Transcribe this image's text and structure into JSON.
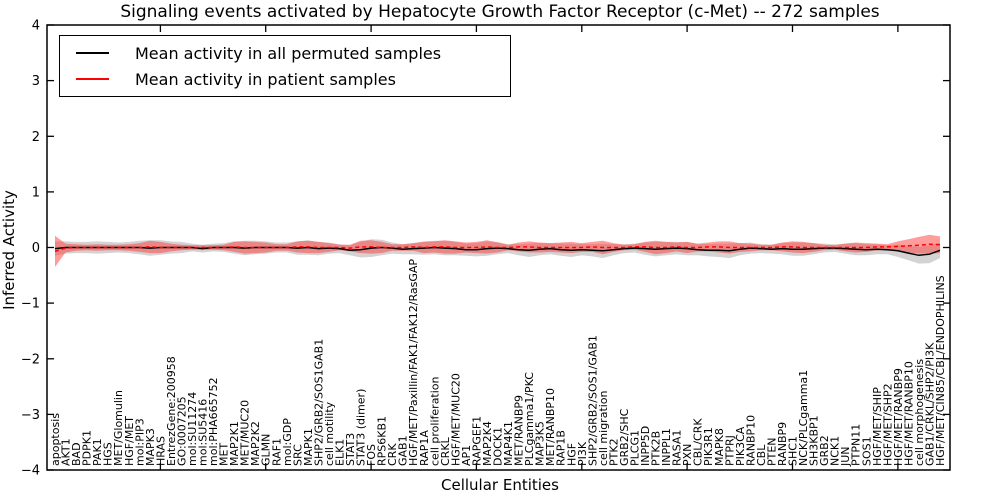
{
  "chart_data": {
    "type": "line",
    "title": "Signaling events activated by Hepatocyte Growth Factor Receptor (c-Met) -- 272 samples",
    "xlabel": "Cellular Entities",
    "ylabel": "Inferred Activity",
    "ylim": [
      -4,
      4
    ],
    "yticks": [
      4,
      3,
      2,
      1,
      0,
      -1,
      -2,
      -3,
      -4
    ],
    "xtick_indices": [
      10,
      20,
      30,
      40,
      50,
      60,
      70,
      80
    ],
    "grid": false,
    "legend_position": "upper left",
    "legend": {
      "entries": [
        {
          "label": "Mean activity in all permuted samples",
          "color": "#000000"
        },
        {
          "label": "Mean activity in patient samples",
          "color": "#ff0000"
        }
      ]
    },
    "categories": [
      "apoptosis",
      "AKT1",
      "BAD",
      "PDPK1",
      "PAK1",
      "HGS",
      "MET/Glomulin",
      "HGF/MET",
      "mol:PIP3",
      "MAPK3",
      "HRAS",
      "EntrezGene:200958",
      "GO:0007205",
      "mol:SU11274",
      "mol:SU5416",
      "mol:PHA665752",
      "MET",
      "MAP2K1",
      "MET/MUC20",
      "MAP2K2",
      "GLMN",
      "RAF1",
      "mol:GDP",
      "SRC",
      "MAPK1",
      "SHP2/GRB2/SOS1GAB1",
      "cell motility",
      "ELK1",
      "STAT3",
      "STAT3 (dimer)",
      "FOS",
      "RPS6KB1",
      "CRK",
      "GAB1",
      "HGF/MET/Paxillin/FAK1/FAK12/RasGAP",
      "RAP1A",
      "cell proliferation",
      "CRKL",
      "HGF/MET/MUC20",
      "AP1",
      "RAPGEF1",
      "MAP2K4",
      "DOCK1",
      "MAP4K1",
      "MET/RANBP9",
      "PLCgamma1/PKC",
      "MAP3K5",
      "MET/RANBP10",
      "RAP1B",
      "HGF",
      "PI3K",
      "SHP2/GRB2/SOS1/GAB1",
      "cell migration",
      "PTK2",
      "GRB2/SHC",
      "PLCG1",
      "INPP5D",
      "PTK2B",
      "INPPL1",
      "RASA1",
      "PXN",
      "CBL/CRK",
      "PIK3R1",
      "MAPK8",
      "PTPRJ",
      "PIK3CA",
      "RANBP10",
      "CBL",
      "PTEN",
      "RANBP9",
      "SHC1",
      "NCK/PLCgamma1",
      "SH3KBP1",
      "GRB2",
      "NCK1",
      "JUN",
      "PTPN11",
      "SOS1",
      "HGF/MET/SHIP",
      "HGF/MET/SHP2",
      "HGF/MET/RANBP9",
      "HGF/MET/RANBP10",
      "cell morphogenesis",
      "GAB1/CRKL/SHP2/PI3K",
      "HGF/MET/CIN85/CBL/ENDOPHILINS"
    ],
    "series": [
      {
        "name": "Mean activity in all permuted samples",
        "color": "#000000",
        "style": "solid",
        "values": [
          -0.02,
          0,
          0,
          0,
          0,
          0,
          0,
          0,
          0,
          -0.01,
          0,
          0,
          0,
          0,
          -0.02,
          0,
          0,
          0,
          -0.01,
          0,
          0,
          0,
          0,
          -0.01,
          0,
          -0.02,
          -0.01,
          -0.02,
          -0.05,
          -0.04,
          -0.01,
          0,
          -0.01,
          -0.03,
          -0.02,
          -0.01,
          0,
          -0.01,
          -0.02,
          -0.04,
          -0.04,
          -0.02,
          -0.01,
          -0.02,
          -0.04,
          -0.05,
          -0.03,
          -0.02,
          -0.04,
          -0.05,
          -0.04,
          -0.05,
          -0.06,
          -0.04,
          -0.02,
          -0.01,
          -0.02,
          -0.03,
          -0.02,
          -0.01,
          -0.02,
          -0.04,
          -0.05,
          -0.05,
          -0.06,
          -0.03,
          -0.01,
          -0.02,
          -0.03,
          -0.02,
          -0.03,
          -0.03,
          -0.02,
          -0.01,
          -0.01,
          -0.02,
          -0.03,
          -0.04,
          -0.03,
          -0.04,
          -0.06,
          -0.1,
          -0.14,
          -0.12,
          -0.05
        ]
      },
      {
        "name": "Mean activity in patient samples",
        "color": "#ff0000",
        "style": "dashed",
        "values": [
          -0.07,
          -0.01,
          0,
          0,
          0,
          0,
          0,
          0,
          0,
          0.01,
          0,
          0,
          0,
          0,
          0,
          0,
          0,
          0.01,
          0,
          0,
          0,
          0,
          0,
          0.01,
          0.01,
          0,
          0,
          0,
          -0.01,
          0.01,
          0.01,
          0,
          0,
          0,
          0.01,
          0,
          0.01,
          0.01,
          0,
          0,
          0,
          0.01,
          0,
          0,
          0.01,
          0.01,
          0,
          0,
          0,
          0,
          0,
          0.01,
          0,
          0,
          0,
          0.01,
          0.01,
          0,
          0,
          0.01,
          0,
          0,
          0.01,
          0.01,
          0,
          0,
          0,
          0,
          0,
          0.01,
          0.01,
          0,
          0,
          0,
          0,
          0,
          0,
          0,
          0.01,
          0.01,
          0.02,
          0.03,
          0.04,
          0.06,
          0.05
        ]
      }
    ],
    "bands": [
      {
        "name": "permuted samples std band",
        "center_series": 0,
        "color": "#808080",
        "alpha": 0.35,
        "half_widths": [
          0.13,
          0.11,
          0.1,
          0.1,
          0.11,
          0.1,
          0.09,
          0.1,
          0.12,
          0.14,
          0.13,
          0.11,
          0.1,
          0.07,
          0.07,
          0.07,
          0.08,
          0.11,
          0.13,
          0.12,
          0.11,
          0.09,
          0.09,
          0.12,
          0.13,
          0.12,
          0.1,
          0.08,
          0.09,
          0.14,
          0.16,
          0.14,
          0.1,
          0.09,
          0.1,
          0.12,
          0.12,
          0.13,
          0.12,
          0.11,
          0.12,
          0.13,
          0.11,
          0.08,
          0.1,
          0.12,
          0.11,
          0.1,
          0.11,
          0.12,
          0.1,
          0.11,
          0.13,
          0.1,
          0.08,
          0.08,
          0.11,
          0.13,
          0.12,
          0.11,
          0.12,
          0.1,
          0.11,
          0.12,
          0.13,
          0.11,
          0.1,
          0.08,
          0.08,
          0.1,
          0.12,
          0.12,
          0.1,
          0.08,
          0.07,
          0.09,
          0.11,
          0.1,
          0.09,
          0.08,
          0.11,
          0.13,
          0.15,
          0.16,
          0.14
        ]
      },
      {
        "name": "patient samples std band",
        "center_series": 1,
        "color": "#ff3b3b",
        "alpha": 0.5,
        "half_widths": [
          0.28,
          0.08,
          0.06,
          0.05,
          0.06,
          0.05,
          0.05,
          0.06,
          0.08,
          0.11,
          0.1,
          0.07,
          0.05,
          0.04,
          0.04,
          0.04,
          0.05,
          0.09,
          0.11,
          0.1,
          0.09,
          0.06,
          0.06,
          0.1,
          0.11,
          0.1,
          0.08,
          0.05,
          0.06,
          0.11,
          0.12,
          0.1,
          0.06,
          0.06,
          0.07,
          0.1,
          0.1,
          0.12,
          0.11,
          0.09,
          0.1,
          0.12,
          0.09,
          0.05,
          0.08,
          0.1,
          0.09,
          0.08,
          0.09,
          0.1,
          0.08,
          0.09,
          0.12,
          0.08,
          0.05,
          0.05,
          0.09,
          0.12,
          0.1,
          0.08,
          0.1,
          0.07,
          0.08,
          0.1,
          0.11,
          0.08,
          0.07,
          0.05,
          0.05,
          0.08,
          0.1,
          0.1,
          0.08,
          0.05,
          0.04,
          0.07,
          0.09,
          0.08,
          0.06,
          0.05,
          0.09,
          0.12,
          0.15,
          0.17,
          0.15
        ]
      }
    ]
  }
}
